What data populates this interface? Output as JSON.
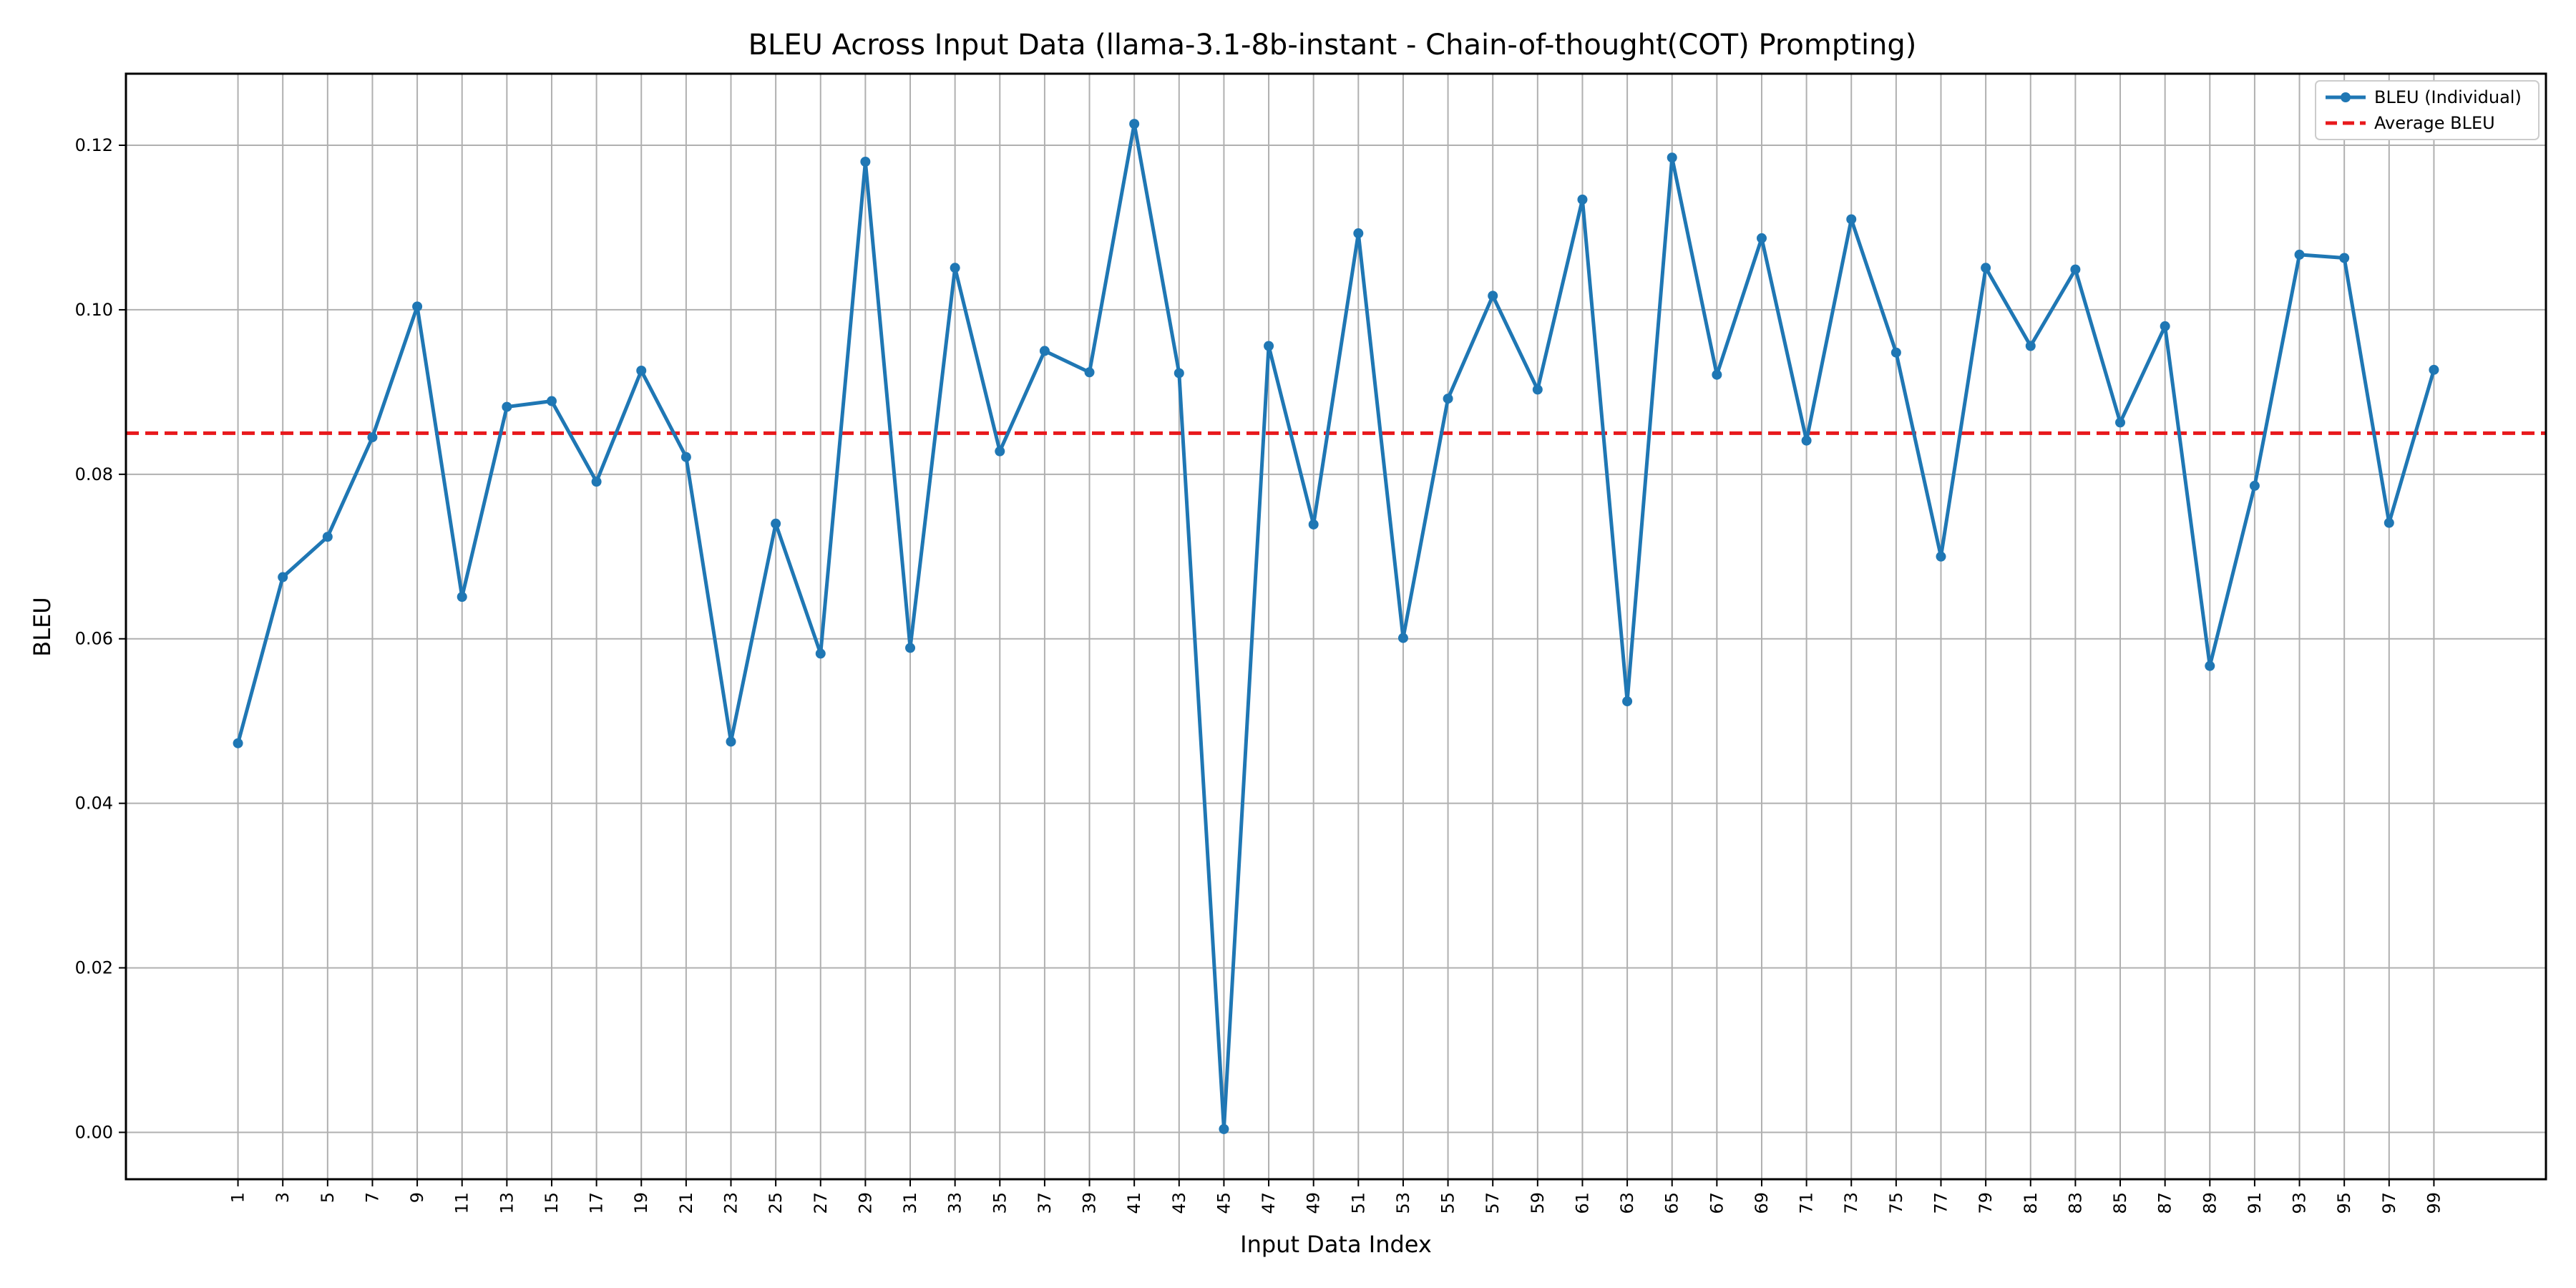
{
  "chart_data": {
    "type": "line",
    "title": "BLEU Across Input Data (llama-3.1-8b-instant - Chain-of-thought(COT) Prompting)",
    "xlabel": "Input Data Index",
    "ylabel": "BLEU",
    "x": [
      1,
      3,
      5,
      7,
      9,
      11,
      13,
      15,
      17,
      19,
      21,
      23,
      25,
      27,
      29,
      31,
      33,
      35,
      37,
      39,
      41,
      43,
      45,
      47,
      49,
      51,
      53,
      55,
      57,
      59,
      61,
      63,
      65,
      67,
      69,
      71,
      73,
      75,
      77,
      79,
      81,
      83,
      85,
      87,
      89,
      91,
      93,
      95,
      97,
      99
    ],
    "series": [
      {
        "name": "BLEU (Individual)",
        "color": "#1f77b4",
        "values": [
          0.0473,
          0.0675,
          0.0724,
          0.0845,
          0.1004,
          0.0651,
          0.0882,
          0.0889,
          0.0791,
          0.0926,
          0.0821,
          0.0475,
          0.074,
          0.0582,
          0.118,
          0.0589,
          0.1051,
          0.0828,
          0.095,
          0.0924,
          0.1226,
          0.0923,
          0.0004,
          0.0956,
          0.0739,
          0.1093,
          0.0601,
          0.0892,
          0.1017,
          0.0903,
          0.1134,
          0.0524,
          0.1185,
          0.0921,
          0.1087,
          0.0841,
          0.111,
          0.0948,
          0.07,
          0.1051,
          0.0956,
          0.1049,
          0.0863,
          0.098,
          0.0567,
          0.0786,
          0.1067,
          0.1063,
          0.0741,
          0.0927
        ]
      }
    ],
    "average": {
      "name": "Average BLEU",
      "value": 0.085,
      "color": "#e8191c"
    },
    "xlim": [
      -4.0,
      104.0
    ],
    "ylim": [
      -0.0057,
      0.1287
    ],
    "yticks": [
      "0.00",
      "0.02",
      "0.04",
      "0.06",
      "0.08",
      "0.10",
      "0.12"
    ],
    "ytick_values": [
      0.0,
      0.02,
      0.04,
      0.06,
      0.08,
      0.1,
      0.12
    ],
    "grid": true,
    "legend": "top-right"
  }
}
